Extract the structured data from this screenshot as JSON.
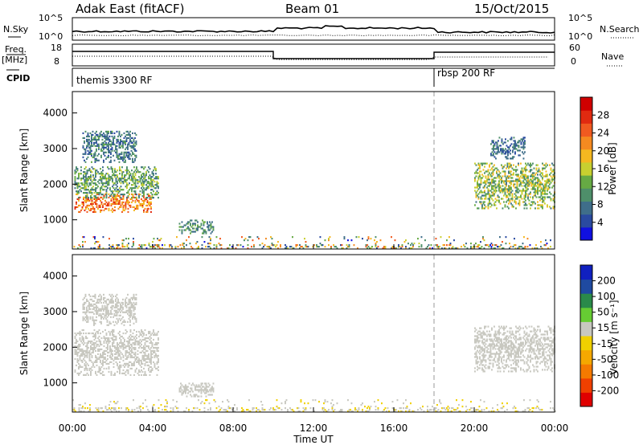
{
  "header": {
    "station": "Adak East (fitACF)",
    "beam": "Beam 01",
    "date": "15/Oct/2015"
  },
  "strip_panels": {
    "noise": {
      "left_label": "N.Sky",
      "right_label": "N.Search",
      "left_ticks": [
        "10^5",
        "10^0"
      ],
      "right_ticks": [
        "10^5",
        "10^0"
      ]
    },
    "freq": {
      "left_label_1": "Freq.",
      "left_label_2": "[MHz]",
      "right_label": "Nave",
      "left_ticks": [
        "18",
        "8"
      ],
      "right_ticks": [
        "60",
        "0"
      ]
    },
    "cpid": {
      "label": "CPID",
      "segments": [
        {
          "start_hour": 0,
          "end_hour": 18,
          "name": "themis 3300 RF"
        },
        {
          "start_hour": 18,
          "end_hour": 24,
          "name": "rbsp 200 RF"
        }
      ]
    }
  },
  "chart_data": [
    {
      "type": "heatmap",
      "panel": "power",
      "ylabel": "Slant Range [km]",
      "ylim": [
        180,
        4600
      ],
      "yticks": [
        1000,
        2000,
        3000,
        4000
      ],
      "xlim_hours": [
        0,
        24
      ],
      "colorbar": {
        "label": "Power [dB]",
        "range": [
          0,
          32
        ],
        "ticks": [
          "4",
          "8",
          "12",
          "16",
          "20",
          "24",
          "28"
        ],
        "colors": [
          "#1010e0",
          "#2a4aa0",
          "#3f6e8a",
          "#4e8f6a",
          "#66aa44",
          "#c8d030",
          "#f5b820",
          "#f58a20",
          "#f05a20",
          "#e02a10",
          "#d00000"
        ]
      },
      "echo_regions": [
        {
          "t_start": 0.1,
          "t_end": 3.9,
          "r_low": 1200,
          "r_high": 1700,
          "value_range": [
            18,
            28
          ]
        },
        {
          "t_start": 0.1,
          "t_end": 4.3,
          "r_low": 1600,
          "r_high": 2500,
          "value_range": [
            6,
            16
          ]
        },
        {
          "t_start": 0.5,
          "t_end": 3.2,
          "r_low": 2600,
          "r_high": 3500,
          "value_range": [
            4,
            12
          ]
        },
        {
          "t_start": 5.3,
          "t_end": 7.0,
          "r_low": 600,
          "r_high": 1000,
          "value_range": [
            6,
            14
          ]
        },
        {
          "t_start": 20.0,
          "t_end": 24.0,
          "r_low": 1300,
          "r_high": 2600,
          "value_range": [
            8,
            20
          ]
        },
        {
          "t_start": 20.8,
          "t_end": 22.5,
          "r_low": 2700,
          "r_high": 3300,
          "value_range": [
            4,
            10
          ]
        },
        {
          "t_start": 0.0,
          "t_end": 24.0,
          "r_low": 180,
          "r_high": 500,
          "value_range": [
            2,
            26
          ]
        }
      ]
    },
    {
      "type": "heatmap",
      "panel": "velocity",
      "ylabel": "Slant Range [km]",
      "ylim": [
        180,
        4600
      ],
      "yticks": [
        1000,
        2000,
        3000,
        4000
      ],
      "xlim_hours": [
        0,
        24
      ],
      "colorbar": {
        "label": "Velocity [m s⁻¹]",
        "range": [
          -250,
          250
        ],
        "ticks": [
          "-200",
          "-100",
          "-50",
          "-15",
          "15",
          "50",
          "100",
          "200"
        ],
        "colors": [
          "#e00000",
          "#f04000",
          "#f57a00",
          "#f5a800",
          "#f0d000",
          "#c8c8c0",
          "#66cc33",
          "#2a8a4a",
          "#1f4aa0",
          "#1020c0"
        ]
      },
      "echo_regions": [
        {
          "t_start": 0.1,
          "t_end": 4.3,
          "r_low": 1200,
          "r_high": 2500,
          "value_range": [
            -15,
            15
          ]
        },
        {
          "t_start": 0.5,
          "t_end": 3.2,
          "r_low": 2600,
          "r_high": 3500,
          "value_range": [
            -15,
            15
          ]
        },
        {
          "t_start": 5.3,
          "t_end": 7.0,
          "r_low": 600,
          "r_high": 1000,
          "value_range": [
            15,
            50
          ]
        },
        {
          "t_start": 20.0,
          "t_end": 24.0,
          "r_low": 1300,
          "r_high": 2600,
          "value_range": [
            -15,
            15
          ]
        },
        {
          "t_start": 0.0,
          "t_end": 24.0,
          "r_low": 180,
          "r_high": 500,
          "value_range": [
            -50,
            50
          ]
        }
      ]
    }
  ],
  "x_axis": {
    "label": "Time UT",
    "ticks": [
      "00:00",
      "04:00",
      "08:00",
      "12:00",
      "16:00",
      "20:00",
      "00:00"
    ],
    "tick_hours": [
      0,
      4,
      8,
      12,
      16,
      20,
      24
    ]
  }
}
